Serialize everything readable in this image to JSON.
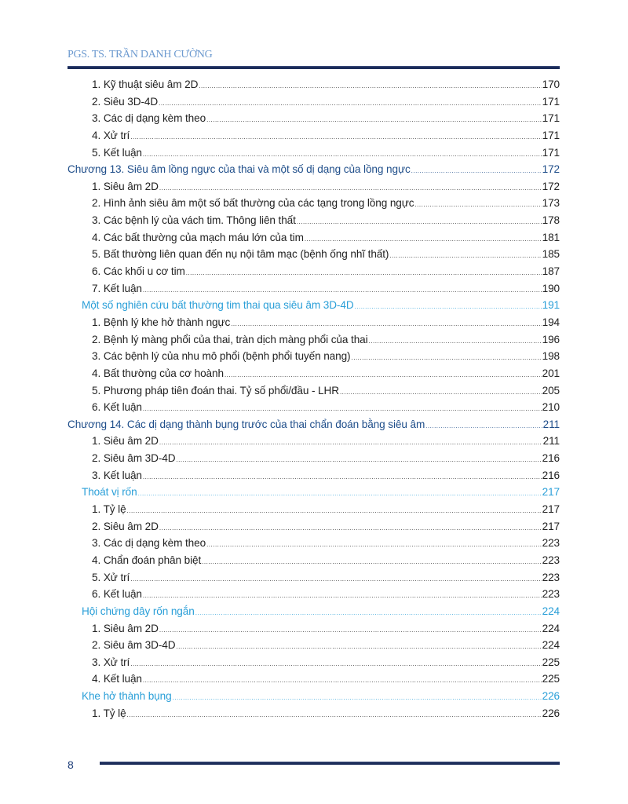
{
  "header": {
    "author": "PGS. TS. TRẦN DANH CƯỜNG"
  },
  "colors": {
    "header": "#6e9bd0",
    "chapter": "#1f4e8a",
    "section": "#2a9fd8",
    "rule": "#1c2d5a"
  },
  "toc": [
    {
      "type": "item",
      "title": "1. Kỹ thuật siêu âm 2D",
      "page": "170"
    },
    {
      "type": "item",
      "title": "2. Siêu 3D-4D ",
      "page": "171"
    },
    {
      "type": "item",
      "title": "3. Các dị dạng kèm theo",
      "page": "171"
    },
    {
      "type": "item",
      "title": "4. Xử trí",
      "page": "171"
    },
    {
      "type": "item",
      "title": "5. Kết luận",
      "page": "171"
    },
    {
      "type": "chapter",
      "title": "Chương 13.  Siêu âm lồng ngực của thai và một số dị dạng của lồng ngực",
      "page": "172"
    },
    {
      "type": "item",
      "title": "1. Siêu âm 2D ",
      "page": "172"
    },
    {
      "type": "item",
      "title": "2. Hình ảnh siêu âm một số bất thường của các tạng trong lồng ngực",
      "page": "173"
    },
    {
      "type": "item",
      "title": "3. Các bệnh lý của vách tim. Thông liên thất",
      "page": "178"
    },
    {
      "type": "item",
      "title": "4. Các bất thường của mạch máu lớn của tim ",
      "page": "181"
    },
    {
      "type": "item",
      "title": "5. Bất thường liên quan đến nụ nội tâm mạc (bệnh ống nhĩ thất)",
      "page": "185"
    },
    {
      "type": "item",
      "title": "6. Các khối u cơ tim",
      "page": "187"
    },
    {
      "type": "item",
      "title": "7. Kết luận",
      "page": "190"
    },
    {
      "type": "section",
      "title": "Một số nghiên cứu bất thường tim thai  qua siêu âm 3D-4D",
      "page": "191"
    },
    {
      "type": "item",
      "title": "1. Bệnh lý khe hở thành ngực ",
      "page": "194"
    },
    {
      "type": "item",
      "title": "2. Bệnh lý màng phổi của thai, tràn dịch màng phổi của thai",
      "page": "196"
    },
    {
      "type": "item",
      "title": "3. Các bệnh lý của nhu mô phổi (bệnh phổi tuyến nang)",
      "page": "198"
    },
    {
      "type": "item",
      "title": "4. Bất thường  của cơ hoành",
      "page": "201"
    },
    {
      "type": "item",
      "title": "5. Phương pháp tiên đoán thai. Tỷ số phổi/đầu - LHR",
      "page": "205"
    },
    {
      "type": "item",
      "title": "6. Kết luận ",
      "page": "210"
    },
    {
      "type": "chapter",
      "title": "Chương 14.  Các dị dạng thành bụng trước của thai  chẩn đoán bằng siêu âm ",
      "page": "211"
    },
    {
      "type": "item",
      "title": "1. Siêu âm 2D",
      "page": "211"
    },
    {
      "type": "item",
      "title": "2. Siêu âm 3D-4D",
      "page": "216"
    },
    {
      "type": "item",
      "title": "3. Kết luận",
      "page": "216"
    },
    {
      "type": "section",
      "title": "Thoát vị rốn ",
      "page": "217"
    },
    {
      "type": "item",
      "title": "1. Tỷ lệ",
      "page": "217"
    },
    {
      "type": "item",
      "title": "2. Siêu âm 2D",
      "page": "217"
    },
    {
      "type": "item",
      "title": "3. Các dị dạng kèm theo",
      "page": "223"
    },
    {
      "type": "item",
      "title": "4. Chẩn đoán phân biệt",
      "page": "223"
    },
    {
      "type": "item",
      "title": "5. Xử trí",
      "page": "223"
    },
    {
      "type": "item",
      "title": "6. Kết luận",
      "page": "223"
    },
    {
      "type": "section",
      "title": "Hội chứng dây rốn ngắn ",
      "page": "224"
    },
    {
      "type": "item",
      "title": "1. Siêu âm 2D",
      "page": "224"
    },
    {
      "type": "item",
      "title": "2. Siêu âm 3D-4D",
      "page": "224"
    },
    {
      "type": "item",
      "title": "3. Xử trí",
      "page": "225"
    },
    {
      "type": "item",
      "title": "4. Kết luận",
      "page": "225"
    },
    {
      "type": "section",
      "title": "Khe hở thành bụng",
      "page": "226"
    },
    {
      "type": "item",
      "title": "1. Tỷ lệ",
      "page": "226"
    }
  ],
  "footer": {
    "page_number": "8"
  }
}
